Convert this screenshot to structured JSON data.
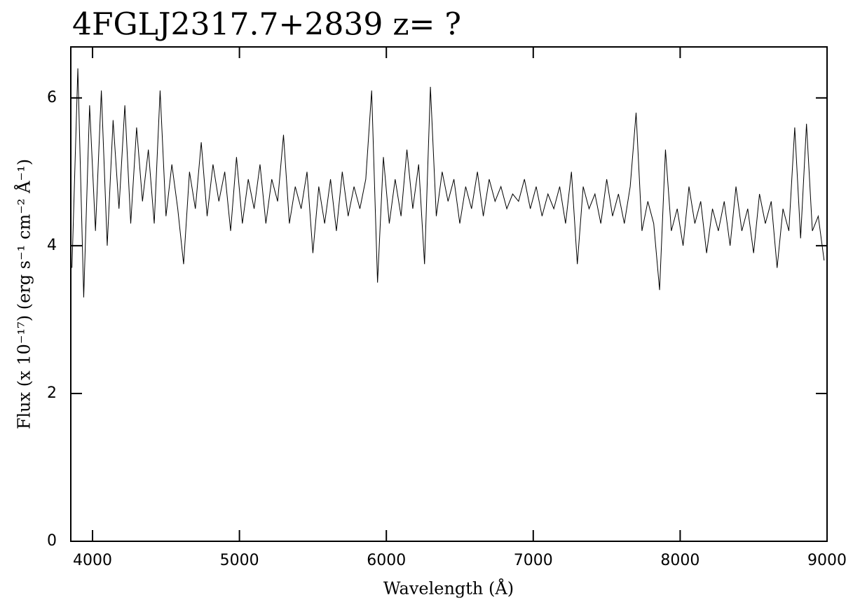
{
  "chart_data": {
    "type": "line",
    "title": "4FGLJ2317.7+2839 z= ?",
    "xlabel": "Wavelength (Å)",
    "ylabel": "Flux (x 10⁻¹⁷) (erg s⁻¹ cm⁻² Å⁻¹)",
    "color": "#000000",
    "xlim": [
      3852,
      9000
    ],
    "xticks": [
      4000,
      5000,
      6000,
      7000,
      8000,
      9000
    ],
    "ylim": [
      0,
      6.69
    ],
    "yticks": [
      0,
      2,
      4,
      6
    ],
    "x": [
      3860,
      3900,
      3940,
      3980,
      4020,
      4060,
      4100,
      4140,
      4180,
      4220,
      4260,
      4300,
      4340,
      4380,
      4420,
      4460,
      4500,
      4540,
      4580,
      4620,
      4660,
      4700,
      4740,
      4780,
      4820,
      4860,
      4900,
      4940,
      4980,
      5020,
      5060,
      5100,
      5140,
      5180,
      5220,
      5260,
      5300,
      5340,
      5380,
      5420,
      5460,
      5500,
      5540,
      5580,
      5620,
      5660,
      5700,
      5740,
      5780,
      5820,
      5860,
      5900,
      5940,
      5980,
      6020,
      6060,
      6100,
      6140,
      6180,
      6220,
      6260,
      6300,
      6340,
      6380,
      6420,
      6460,
      6500,
      6540,
      6580,
      6620,
      6660,
      6700,
      6740,
      6780,
      6820,
      6860,
      6900,
      6940,
      6980,
      7020,
      7060,
      7100,
      7140,
      7180,
      7220,
      7260,
      7300,
      7340,
      7380,
      7420,
      7460,
      7500,
      7540,
      7580,
      7620,
      7660,
      7700,
      7740,
      7780,
      7820,
      7860,
      7900,
      7940,
      7980,
      8020,
      8060,
      8100,
      8140,
      8180,
      8220,
      8260,
      8300,
      8340,
      8380,
      8420,
      8460,
      8500,
      8540,
      8580,
      8620,
      8660,
      8700,
      8740,
      8780,
      8820,
      8860,
      8900,
      8940,
      8980
    ],
    "values": [
      3.7,
      6.4,
      3.3,
      5.9,
      4.2,
      6.1,
      4.0,
      5.7,
      4.5,
      5.9,
      4.3,
      5.6,
      4.6,
      5.3,
      4.3,
      6.1,
      4.4,
      5.1,
      4.5,
      3.75,
      5.0,
      4.5,
      5.4,
      4.4,
      5.1,
      4.6,
      5.0,
      4.2,
      5.2,
      4.3,
      4.9,
      4.5,
      5.1,
      4.3,
      4.9,
      4.6,
      5.5,
      4.3,
      4.8,
      4.5,
      5.0,
      3.9,
      4.8,
      4.3,
      4.9,
      4.2,
      5.0,
      4.4,
      4.8,
      4.5,
      4.9,
      6.1,
      3.5,
      5.2,
      4.3,
      4.9,
      4.4,
      5.3,
      4.5,
      5.1,
      3.75,
      6.15,
      4.4,
      5.0,
      4.6,
      4.9,
      4.3,
      4.8,
      4.5,
      5.0,
      4.4,
      4.9,
      4.6,
      4.8,
      4.5,
      4.7,
      4.6,
      4.9,
      4.5,
      4.8,
      4.4,
      4.7,
      4.5,
      4.8,
      4.3,
      5.0,
      3.75,
      4.8,
      4.5,
      4.7,
      4.3,
      4.9,
      4.4,
      4.7,
      4.3,
      4.8,
      5.8,
      4.2,
      4.6,
      4.3,
      3.4,
      5.3,
      4.2,
      4.5,
      4.0,
      4.8,
      4.3,
      4.6,
      3.9,
      4.5,
      4.2,
      4.6,
      4.0,
      4.8,
      4.2,
      4.5,
      3.9,
      4.7,
      4.3,
      4.6,
      3.7,
      4.5,
      4.2,
      5.6,
      4.1,
      5.65,
      4.2,
      4.4,
      3.8
    ]
  }
}
